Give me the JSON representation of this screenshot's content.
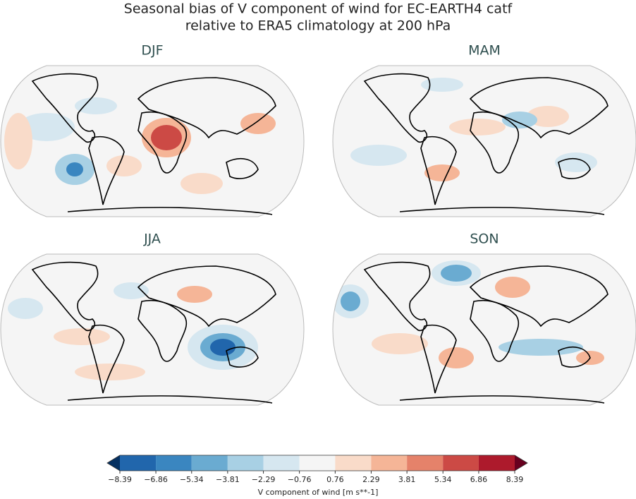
{
  "title": [
    "Seasonal bias of V component of wind for EC-EARTH4 catf",
    "relative to ERA5 climatology at 200 hPa"
  ],
  "panels": [
    {
      "title": "DJF"
    },
    {
      "title": "MAM"
    },
    {
      "title": "JJA"
    },
    {
      "title": "SON"
    }
  ],
  "colorbar": {
    "label": "V component of wind [m s**-1]",
    "ticks": [
      {
        "value": -8.39,
        "label": "−8.39"
      },
      {
        "value": -6.86,
        "label": "−6.86"
      },
      {
        "value": -5.34,
        "label": "−5.34"
      },
      {
        "value": -3.81,
        "label": "−3.81"
      },
      {
        "value": -2.29,
        "label": "−2.29"
      },
      {
        "value": -0.76,
        "label": "−0.76"
      },
      0.76,
      2.29,
      3.81,
      5.34,
      6.86,
      8.39
    ],
    "colors": [
      "#2166ac",
      "#3a86c0",
      "#6aabd1",
      "#a8d0e4",
      "#d6e7f0",
      "#f5f5f5",
      "#f9dbc9",
      "#f5b597",
      "#e5826a",
      "#cc4a45",
      "#ad1a2c"
    ],
    "under_color": "#053061",
    "over_color": "#67001f"
  }
}
